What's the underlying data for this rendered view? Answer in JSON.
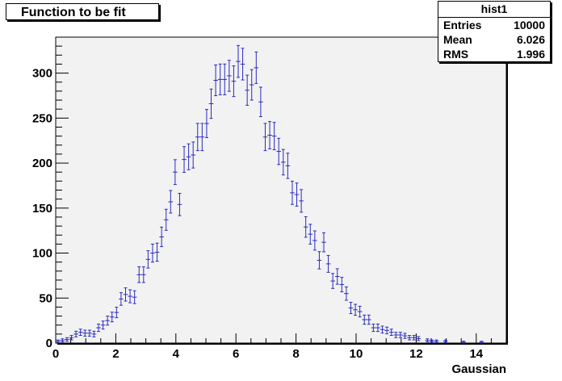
{
  "title": "Function to be fit",
  "stats": {
    "name": "hist1",
    "rows": [
      {
        "label": "Entries",
        "value": "10000"
      },
      {
        "label": "Mean",
        "value": "6.026"
      },
      {
        "label": "RMS",
        "value": "1.996"
      }
    ]
  },
  "colors": {
    "frame_bg": "#f2f2f2",
    "marker": "#2b2bbf",
    "text": "#000000"
  },
  "chart_data": {
    "type": "scatter",
    "style": "histogram-errorbars",
    "xlabel": "Gaussian",
    "ylabel": "",
    "xlim": [
      0,
      15
    ],
    "ylim": [
      0,
      340
    ],
    "bin_width": 0.15,
    "x_ticks": [
      "0",
      "2",
      "4",
      "6",
      "8",
      "10",
      "12",
      "14"
    ],
    "y_ticks": [
      "0",
      "50",
      "100",
      "150",
      "200",
      "250",
      "300"
    ],
    "x": [
      0.075,
      0.225,
      0.375,
      0.525,
      0.675,
      0.825,
      0.975,
      1.125,
      1.275,
      1.425,
      1.575,
      1.725,
      1.875,
      2.025,
      2.175,
      2.325,
      2.475,
      2.625,
      2.775,
      2.925,
      3.075,
      3.225,
      3.375,
      3.525,
      3.675,
      3.825,
      3.975,
      4.125,
      4.275,
      4.425,
      4.575,
      4.725,
      4.875,
      5.025,
      5.175,
      5.325,
      5.475,
      5.625,
      5.775,
      5.925,
      6.075,
      6.225,
      6.375,
      6.525,
      6.675,
      6.825,
      6.975,
      7.125,
      7.275,
      7.425,
      7.575,
      7.725,
      7.875,
      8.025,
      8.175,
      8.325,
      8.475,
      8.625,
      8.775,
      8.925,
      9.075,
      9.225,
      9.375,
      9.525,
      9.675,
      9.825,
      9.975,
      10.125,
      10.275,
      10.425,
      10.575,
      10.725,
      10.875,
      11.025,
      11.175,
      11.325,
      11.475,
      11.625,
      11.775,
      11.925,
      12.075,
      12.375,
      12.525,
      12.675,
      12.975,
      13.575,
      14.175
    ],
    "y": [
      2,
      3,
      4,
      6,
      10,
      12,
      11,
      11,
      10,
      17,
      20,
      25,
      29,
      34,
      49,
      54,
      52,
      51,
      76,
      76,
      93,
      100,
      101,
      118,
      137,
      157,
      190,
      154,
      204,
      207,
      209,
      229,
      229,
      244,
      266,
      292,
      293,
      293,
      297,
      291,
      313,
      310,
      281,
      287,
      306,
      268,
      229,
      231,
      230,
      213,
      201,
      197,
      167,
      165,
      158,
      129,
      121,
      114,
      92,
      112,
      88,
      69,
      74,
      65,
      55,
      39,
      37,
      35,
      26,
      26,
      17,
      17,
      15,
      14,
      12,
      9,
      9,
      8,
      6,
      6,
      5,
      3,
      2,
      2,
      2,
      1,
      1
    ]
  }
}
